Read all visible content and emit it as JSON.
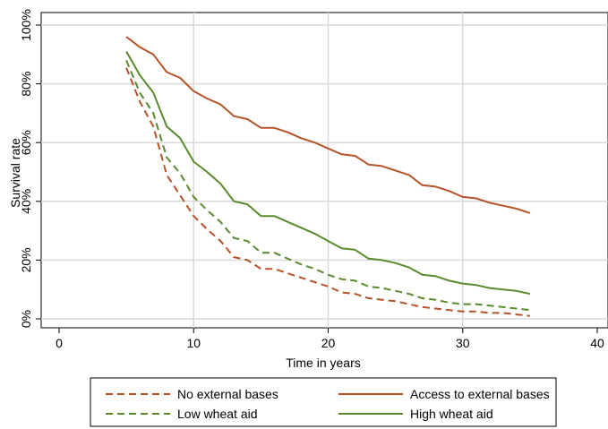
{
  "chart_data": {
    "type": "line",
    "title": "",
    "xlabel": "Time in years",
    "ylabel": "Survival rate",
    "xlim": [
      0,
      40
    ],
    "ylim": [
      0,
      100
    ],
    "x_ticks": [
      "0",
      "10",
      "20",
      "30",
      "40"
    ],
    "y_ticks": [
      "0%",
      "20%",
      "40%",
      "60%",
      "80%",
      "100%"
    ],
    "grid": true,
    "legend_position": "bottom",
    "series": [
      {
        "name": "No external bases",
        "color": "#b5532a",
        "dash": "dashed",
        "x": [
          5,
          6,
          7,
          8,
          9,
          10,
          11,
          12,
          13,
          14,
          15,
          16,
          17,
          18,
          19,
          20,
          21,
          22,
          23,
          24,
          25,
          26,
          27,
          28,
          29,
          30,
          31,
          32,
          33,
          34,
          35
        ],
        "y": [
          85.5,
          74,
          65.5,
          49,
          42,
          35,
          30.5,
          26.5,
          21,
          20,
          17,
          17,
          15.5,
          14,
          12.5,
          11,
          9,
          8.5,
          7,
          6.5,
          6,
          5,
          4,
          3.5,
          3,
          2.5,
          2.5,
          2,
          2,
          1.5,
          1
        ]
      },
      {
        "name": "Access to external bases",
        "color": "#b5532a",
        "dash": "solid",
        "x": [
          5,
          6,
          7,
          8,
          9,
          10,
          11,
          12,
          13,
          14,
          15,
          16,
          17,
          18,
          19,
          20,
          21,
          22,
          23,
          24,
          25,
          26,
          27,
          28,
          29,
          30,
          31,
          32,
          33,
          34,
          35
        ],
        "y": [
          96,
          92.5,
          90,
          84,
          82,
          77.5,
          75,
          73,
          69,
          68,
          65,
          65,
          63.5,
          61.5,
          60,
          58,
          56,
          55.5,
          52.5,
          52,
          50.5,
          49,
          45.5,
          45,
          43.5,
          41.5,
          41,
          39.5,
          38.5,
          37.5,
          36
        ]
      },
      {
        "name": "Low wheat aid",
        "color": "#5a8a2e",
        "dash": "dashed",
        "x": [
          5,
          6,
          7,
          8,
          9,
          10,
          11,
          12,
          13,
          14,
          15,
          16,
          17,
          18,
          19,
          20,
          21,
          22,
          23,
          24,
          25,
          26,
          27,
          28,
          29,
          30,
          31,
          32,
          33,
          34,
          35
        ],
        "y": [
          88,
          77,
          70,
          55,
          49.5,
          41.5,
          37,
          33,
          27.5,
          26.5,
          22.5,
          22.5,
          20.5,
          18.5,
          17,
          15,
          13.5,
          13,
          11,
          10.5,
          9.5,
          8.5,
          7,
          6.5,
          5.5,
          5,
          5,
          4.5,
          4,
          3.5,
          3
        ]
      },
      {
        "name": "High wheat aid",
        "color": "#5a8a2e",
        "dash": "solid",
        "x": [
          5,
          6,
          7,
          8,
          9,
          10,
          11,
          12,
          13,
          14,
          15,
          16,
          17,
          18,
          19,
          20,
          21,
          22,
          23,
          24,
          25,
          26,
          27,
          28,
          29,
          30,
          31,
          32,
          33,
          34,
          35
        ],
        "y": [
          91,
          83,
          77,
          65.5,
          61.5,
          53.5,
          50,
          46,
          40,
          39,
          35,
          35,
          33,
          31,
          29,
          26.5,
          24,
          23.5,
          20.5,
          20,
          19,
          17.5,
          15,
          14.5,
          13,
          12,
          11.5,
          10.5,
          10,
          9.5,
          8.5
        ]
      }
    ],
    "legend_order": [
      0,
      1,
      2,
      3
    ]
  }
}
